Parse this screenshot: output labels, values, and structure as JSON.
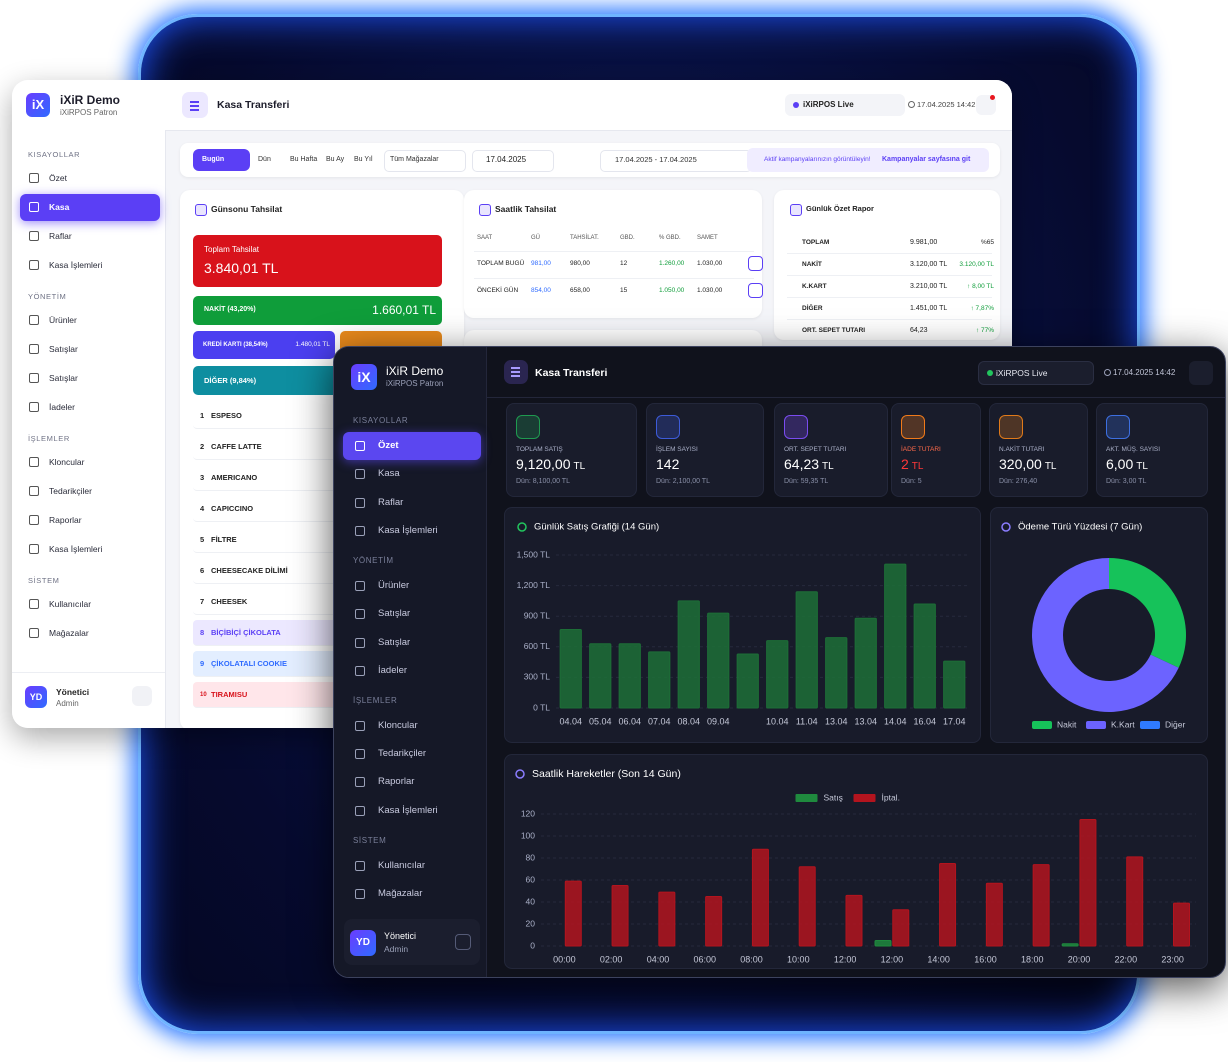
{
  "light_app": {
    "logo": "iX",
    "brand": "iXiR Demo",
    "brand_sub": "iXiRPOS Patron",
    "page_title": "Kasa Transferi",
    "store": "iXiRPOS Live",
    "datetime": "17.04.2025 14:42",
    "nav": [
      {
        "title": "KISAYOLLAR",
        "items": [
          "Özet",
          "Kasa",
          "Raflar",
          "Kasa İşlemleri"
        ]
      },
      {
        "title": "YÖNETİM",
        "items": [
          "Ürünler",
          "Satışlar",
          "Satışlar",
          "İadeler"
        ]
      },
      {
        "title": "İŞLEMLER",
        "items": [
          "Kloncular",
          "Tedarikçiler",
          "Raporlar",
          "Kasa İşlemleri"
        ]
      },
      {
        "title": "SİSTEM",
        "items": [
          "Kullanıcılar",
          "Mağazalar"
        ]
      }
    ],
    "user": {
      "avatar": "YD",
      "name": "Yönetici",
      "role": "Admin"
    },
    "filters": [
      "Bugün",
      "Dün",
      "Bu Hafta",
      "Bu Ay",
      "Bu Yıl"
    ],
    "store_filter": "Tüm Mağazalar",
    "date": "17.04.2025",
    "range": "17.04.2025 - 17.04.2025",
    "campaign_note": "Aktif kampanyalarınızın görüntüleyin!",
    "campaign_link": "Kampanyalar sayfasına git",
    "collection": {
      "title": "Günsonu Tahsilat",
      "total_label": "Toplam Tahsilat",
      "total": "3.840,01 TL",
      "cash_label": "NAKİT (43,20%)",
      "cash": "1.660,01 TL",
      "card_label": "KREDİ KARTI (38,54%)",
      "card": "1.480,01 TL",
      "other_label": "DİĞER (9,84%)"
    },
    "products": [
      {
        "rank": 1,
        "name": "ESPESO"
      },
      {
        "rank": 2,
        "name": "CAFFE LATTE"
      },
      {
        "rank": 3,
        "name": "AMERICANO"
      },
      {
        "rank": 4,
        "name": "CAPICCINO"
      },
      {
        "rank": 5,
        "name": "FİLTRE"
      },
      {
        "rank": 6,
        "name": "CHEESECAKE DİLİMİ"
      },
      {
        "rank": 7,
        "name": "CHEESEK"
      },
      {
        "rank": 8,
        "name": "BİÇİBİÇİ ÇİKOLATA"
      },
      {
        "rank": 9,
        "name": "ÇİKOLATALI COOKIE"
      },
      {
        "rank": 10,
        "name": "TIRAMISU"
      }
    ],
    "hourly": {
      "title": "Saatlik Tahsilat",
      "headers": [
        "SAAT",
        "GÜ",
        "TAHSİLAT.",
        "GBD.",
        "% GBD.",
        "SAMET"
      ],
      "rows": [
        [
          "TOPLAM BUGÜ",
          "981,00",
          "980,00",
          "12",
          "1.260,00",
          "1.030,00"
        ],
        [
          "ÖNCEKİ GÜN",
          "854,00",
          "658,00",
          "15",
          "1.050,00",
          "1.030,00"
        ]
      ]
    },
    "report": {
      "title": "Günlük Özet Rapor",
      "rows": [
        [
          "TOPLAM",
          "9.981,00",
          "%65"
        ],
        [
          "NAKİT",
          "3.120,00 TL",
          "3.120,00 TL"
        ],
        [
          "K.KART",
          "3.210,00 TL",
          "↑ 8,00 TL"
        ],
        [
          "DİĞER",
          "1.451,00 TL",
          "↑ 7,87%"
        ],
        [
          "ORT. SEPET TUTARI",
          "64,23",
          "↑ 77%"
        ]
      ]
    }
  },
  "dark_app": {
    "logo": "iX",
    "brand": "iXiR Demo",
    "brand_sub": "iXiRPOS Patron",
    "page_title": "Kasa Transferi",
    "store": "iXiRPOS Live",
    "datetime": "17.04.2025 14:42",
    "nav": [
      {
        "title": "KISAYOLLAR",
        "items": [
          "Özet",
          "Kasa",
          "Raflar",
          "Kasa İşlemleri"
        ]
      },
      {
        "title": "YÖNETİM",
        "items": [
          "Ürünler",
          "Satışlar",
          "Satışlar",
          "İadeler"
        ]
      },
      {
        "title": "İŞLEMLER",
        "items": [
          "Kloncular",
          "Tedarikçiler",
          "Raporlar",
          "Kasa İşlemleri"
        ]
      },
      {
        "title": "SİSTEM",
        "items": [
          "Kullanıcılar",
          "Mağazalar"
        ]
      }
    ],
    "user": {
      "avatar": "YD",
      "name": "Yönetici",
      "role": "Admin"
    },
    "kpis": [
      {
        "label": "TOPLAM SATIŞ",
        "value": "9,120,00",
        "unit": "TL",
        "sub": "Dün: 8,100,00 TL"
      },
      {
        "label": "İŞLEM SAYISI",
        "value": "142",
        "sub": "Dün: 2,100,00 TL"
      },
      {
        "label": "ORT. SEPET TUTARI",
        "value": "64,23",
        "unit": "TL",
        "sub": "Dün: 59,35 TL"
      },
      {
        "label": "İADE TUTARI",
        "value": "2",
        "unit": "TL",
        "sub": "Dün: 5"
      },
      {
        "label": "N.AKİT TUTARI",
        "value": "320,00",
        "unit": "TL",
        "sub": "Dün: 276,40"
      },
      {
        "label": "AKT. MÜŞ. SAYISI",
        "value": "6,00",
        "unit": "TL",
        "sub": "Dün: 3,00 TL"
      }
    ]
  },
  "chart_data": [
    {
      "type": "bar",
      "title": "Günlük Satış Grafiği (14 Gün)",
      "categories": [
        "04.04",
        "05.04",
        "06.04",
        "07.04",
        "08.04",
        "09.04",
        null,
        "10.04",
        "11.04",
        "13.04",
        "13.04",
        "14.04",
        "16.04",
        "17.04"
      ],
      "values": [
        770,
        630,
        630,
        550,
        1050,
        930,
        530,
        660,
        1140,
        690,
        880,
        1410,
        1020,
        460
      ],
      "color": "#1d6e37",
      "ylim": [
        0,
        1500
      ],
      "yticks": [
        {
          "value": 0,
          "label": "0 TL"
        },
        {
          "value": 300,
          "label": "300 TL"
        },
        {
          "value": 600,
          "label": "600 TL"
        },
        {
          "value": 900,
          "label": "900 TL"
        },
        {
          "value": 1200,
          "label": "1,200 TL"
        },
        {
          "value": 1500,
          "label": "1,500 TL"
        }
      ],
      "grid": true
    },
    {
      "type": "pie",
      "title": "Ödeme Türü Yüzdesi (7 Gün)",
      "categories": [
        "Nakit",
        "K.Kart",
        "Diğer"
      ],
      "values": [
        32,
        68,
        0
      ],
      "colors": [
        "#16c25a",
        "#6c63ff",
        "#2f7bff"
      ]
    },
    {
      "type": "bar",
      "title": "Saatlik Hareketler (Son 14 Gün)",
      "categories": [
        "00:00",
        "02:00",
        "04:00",
        "06:00",
        "08:00",
        "10:00",
        "12:00",
        "12:00",
        "14:00",
        "16:00",
        "18:00",
        "20:00",
        "22:00",
        "23:00"
      ],
      "series": [
        {
          "name": "Satış",
          "color": "#1f8a3e",
          "values": [
            0,
            0,
            0,
            0,
            0,
            0,
            0,
            5,
            0,
            0,
            0,
            2,
            0,
            0
          ]
        },
        {
          "name": "İptal.",
          "color": "#b3141e",
          "values": [
            59,
            55,
            49,
            45,
            88,
            72,
            46,
            33,
            75,
            57,
            74,
            115,
            81,
            39
          ]
        }
      ],
      "ylim": [
        0,
        120
      ],
      "yticks": [
        0,
        20,
        40,
        60,
        80,
        100,
        120
      ],
      "grid": true
    }
  ]
}
